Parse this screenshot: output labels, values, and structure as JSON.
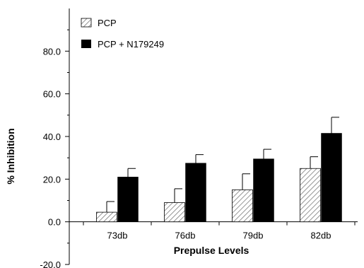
{
  "chart_data": {
    "type": "bar",
    "xlabel": "Prepulse Levels",
    "ylabel": "% Inhibition",
    "categories": [
      "73db",
      "76db",
      "79db",
      "82db"
    ],
    "y_tick_labels": [
      "-20.0",
      "0.0",
      "20.0",
      "40.0",
      "60.0",
      "80.0"
    ],
    "ylim": [
      -20,
      100
    ],
    "grid": false,
    "legend_position": "top-left",
    "series": [
      {
        "name": "PCP",
        "values": [
          4.5,
          9,
          15,
          25
        ],
        "errors": [
          5,
          6.5,
          7.5,
          5.5
        ],
        "fill": "hatched"
      },
      {
        "name": "PCP + N179249",
        "values": [
          21,
          27.5,
          29.5,
          41.5
        ],
        "errors": [
          4,
          4,
          4.5,
          7.5
        ],
        "fill": "#000000"
      }
    ]
  }
}
